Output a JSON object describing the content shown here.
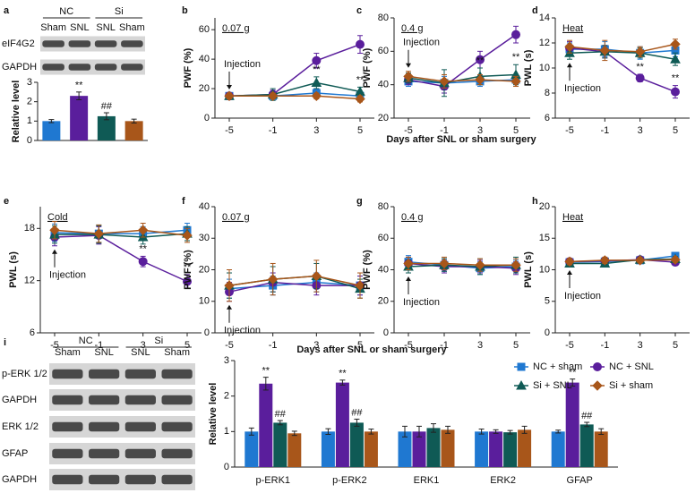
{
  "legend": [
    {
      "name": "NC + sham",
      "color": "#1f78d1",
      "marker": "square"
    },
    {
      "name": "NC + SNL",
      "color": "#5a1e9c",
      "marker": "circle"
    },
    {
      "name": "Si + SNL",
      "color": "#0f5a55",
      "marker": "triangle"
    },
    {
      "name": "Si + sham",
      "color": "#a8561a",
      "marker": "diamond"
    }
  ],
  "chart_data": [
    {
      "type": "bar",
      "panel": "a",
      "ylabel": "Relative level",
      "ylim": [
        0,
        3
      ],
      "yticks": [
        0,
        1,
        2,
        3
      ],
      "blot": {
        "groups": [
          "NC",
          "Si"
        ],
        "lanes": [
          "Sham",
          "SNL",
          "SNL",
          "Sham"
        ],
        "rows": [
          "eIF4G2",
          "GAPDH"
        ]
      },
      "values": [
        1,
        2.3,
        1.25,
        1.0
      ],
      "errors": [
        0.08,
        0.2,
        0.18,
        0.1
      ],
      "significance": [
        null,
        "**",
        "##",
        null
      ]
    },
    {
      "type": "line",
      "panel": "b",
      "ylabel": "PWF (%)",
      "condition": "0.07 g",
      "annotation": "Injection",
      "categories": [
        "-5",
        "-1",
        "3",
        "5"
      ],
      "ylim": [
        0,
        68
      ],
      "yticks": [
        0,
        20,
        40,
        60
      ],
      "series": [
        {
          "values": [
            15,
            15,
            17,
            15
          ],
          "errors": [
            2,
            2,
            3,
            3
          ],
          "significance": [
            null,
            null,
            null,
            null
          ]
        },
        {
          "values": [
            15,
            16,
            39,
            50
          ],
          "errors": [
            2,
            3,
            5,
            6
          ],
          "significance": [
            null,
            null,
            null,
            null
          ]
        },
        {
          "values": [
            15,
            16,
            24,
            18
          ],
          "errors": [
            2,
            4,
            4,
            3
          ],
          "significance": [
            null,
            null,
            "**",
            "**"
          ]
        },
        {
          "values": [
            15,
            15,
            15,
            13
          ],
          "errors": [
            2,
            2,
            2,
            2
          ],
          "significance": [
            null,
            null,
            null,
            null
          ]
        }
      ]
    },
    {
      "type": "line",
      "panel": "c",
      "ylabel": "PWF (%)",
      "condition": "0.4 g",
      "annotation": "Injection",
      "xlabel": "Days after SNL or sham surgery",
      "categories": [
        "-5",
        "-1",
        "3",
        "5"
      ],
      "ylim": [
        20,
        80
      ],
      "yticks": [
        20,
        40,
        60,
        80
      ],
      "series": [
        {
          "values": [
            42,
            41,
            42,
            43
          ],
          "errors": [
            3,
            4,
            3,
            3
          ],
          "significance": [
            null,
            null,
            null,
            null
          ]
        },
        {
          "values": [
            43,
            39,
            55,
            70
          ],
          "errors": [
            3,
            4,
            5,
            5
          ],
          "significance": [
            null,
            null,
            null,
            null
          ]
        },
        {
          "values": [
            44,
            41,
            45,
            46
          ],
          "errors": [
            3,
            8,
            5,
            6
          ],
          "significance": [
            null,
            null,
            "**",
            "**"
          ]
        },
        {
          "values": [
            45,
            42,
            43,
            42
          ],
          "errors": [
            3,
            4,
            3,
            3
          ],
          "significance": [
            null,
            null,
            null,
            null
          ]
        }
      ]
    },
    {
      "type": "line",
      "panel": "d",
      "ylabel": "PWL (s)",
      "condition": "Heat",
      "annotation": "Injection",
      "categories": [
        "-5",
        "-1",
        "3",
        "5"
      ],
      "ylim": [
        6,
        14
      ],
      "yticks": [
        6,
        8,
        10,
        12,
        14
      ],
      "series": [
        {
          "values": [
            11.5,
            11.5,
            11.2,
            11.4
          ],
          "errors": [
            0.5,
            0.6,
            0.5,
            0.5
          ],
          "significance": [
            null,
            null,
            null,
            null
          ]
        },
        {
          "values": [
            11.6,
            11.3,
            9.2,
            8.1
          ],
          "errors": [
            0.5,
            0.5,
            0.3,
            0.5
          ],
          "significance": [
            null,
            null,
            "**",
            "**"
          ]
        },
        {
          "values": [
            11.2,
            11.3,
            11.2,
            10.7
          ],
          "errors": [
            0.5,
            0.5,
            0.4,
            0.5
          ],
          "significance": [
            null,
            null,
            null,
            null
          ]
        },
        {
          "values": [
            11.7,
            11.4,
            11.3,
            11.9
          ],
          "errors": [
            0.5,
            0.8,
            0.4,
            0.4
          ],
          "significance": [
            null,
            null,
            null,
            null
          ]
        }
      ]
    },
    {
      "type": "line",
      "panel": "e",
      "ylabel": "PWL (s)",
      "condition": "Cold",
      "annotation": "Injection",
      "categories": [
        "-5",
        "-1",
        "3",
        "5"
      ],
      "ylim": [
        6,
        20.5
      ],
      "yticks": [
        6,
        12,
        18
      ],
      "series": [
        {
          "values": [
            17.5,
            17.4,
            17.4,
            17.8
          ],
          "errors": [
            1,
            1,
            0.8,
            0.8
          ],
          "significance": [
            null,
            null,
            null,
            null
          ]
        },
        {
          "values": [
            17.0,
            17.2,
            14.2,
            11.9
          ],
          "errors": [
            1,
            1,
            0.6,
            0.8
          ],
          "significance": [
            null,
            null,
            "**",
            "**"
          ]
        },
        {
          "values": [
            17.3,
            17.3,
            17.0,
            17.4
          ],
          "errors": [
            1,
            1,
            0.8,
            0.8
          ],
          "significance": [
            null,
            null,
            null,
            null
          ]
        },
        {
          "values": [
            17.8,
            17.4,
            17.8,
            17.2
          ],
          "errors": [
            1,
            1,
            0.8,
            0.8
          ],
          "significance": [
            null,
            null,
            null,
            null
          ]
        }
      ]
    },
    {
      "type": "line",
      "panel": "f",
      "ylabel": "PWF (%)",
      "condition": "0.07 g",
      "annotation": "Injection",
      "xlabel": "Days after SNL or sham surgery",
      "categories": [
        "-5",
        "-1",
        "3",
        "5"
      ],
      "ylim": [
        0,
        40
      ],
      "yticks": [
        0,
        10,
        20,
        30,
        40
      ],
      "series": [
        {
          "values": [
            14,
            15,
            16,
            15
          ],
          "errors": [
            3,
            3,
            3,
            3
          ],
          "significance": [
            null,
            null,
            null,
            null
          ]
        },
        {
          "values": [
            13,
            16,
            15,
            15
          ],
          "errors": [
            3,
            3,
            3,
            3
          ],
          "significance": [
            null,
            null,
            null,
            null
          ]
        },
        {
          "values": [
            15,
            17,
            18,
            14
          ],
          "errors": [
            4,
            4,
            4,
            3
          ],
          "significance": [
            null,
            null,
            null,
            null
          ]
        },
        {
          "values": [
            15,
            17,
            18,
            15
          ],
          "errors": [
            5,
            5,
            5,
            4
          ],
          "significance": [
            null,
            null,
            null,
            null
          ]
        }
      ]
    },
    {
      "type": "line",
      "panel": "g",
      "ylabel": "PWF (%)",
      "condition": "0.4 g",
      "annotation": "Injection",
      "categories": [
        "-5",
        "-1",
        "3",
        "5"
      ],
      "ylim": [
        0,
        80
      ],
      "yticks": [
        0,
        20,
        40,
        60,
        80
      ],
      "series": [
        {
          "values": [
            45,
            43,
            41,
            42
          ],
          "errors": [
            4,
            4,
            4,
            4
          ],
          "significance": [
            null,
            null,
            null,
            null
          ]
        },
        {
          "values": [
            44,
            42,
            42,
            41
          ],
          "errors": [
            4,
            4,
            4,
            4
          ],
          "significance": [
            null,
            null,
            null,
            null
          ]
        },
        {
          "values": [
            42,
            43,
            42,
            43
          ],
          "errors": [
            4,
            4,
            5,
            5
          ],
          "significance": [
            null,
            null,
            null,
            null
          ]
        },
        {
          "values": [
            44,
            44,
            43,
            43
          ],
          "errors": [
            4,
            4,
            4,
            4
          ],
          "significance": [
            null,
            null,
            null,
            null
          ]
        }
      ]
    },
    {
      "type": "line",
      "panel": "h",
      "ylabel": "PWL (s)",
      "condition": "Heat",
      "annotation": "Injection",
      "categories": [
        "-5",
        "-1",
        "3",
        "5"
      ],
      "ylim": [
        0,
        20
      ],
      "yticks": [
        0,
        5,
        10,
        15,
        20
      ],
      "series": [
        {
          "values": [
            11.2,
            11.3,
            11.5,
            12.2
          ],
          "errors": [
            0.5,
            0.5,
            0.4,
            0.4
          ],
          "significance": [
            null,
            null,
            null,
            null
          ]
        },
        {
          "values": [
            11.3,
            11.4,
            11.6,
            11.2
          ],
          "errors": [
            0.5,
            0.5,
            0.4,
            0.4
          ],
          "significance": [
            null,
            null,
            null,
            null
          ]
        },
        {
          "values": [
            11.0,
            11.0,
            11.6,
            11.7
          ],
          "errors": [
            0.5,
            0.5,
            0.4,
            0.4
          ],
          "significance": [
            null,
            null,
            null,
            null
          ]
        },
        {
          "values": [
            11.3,
            11.5,
            11.5,
            11.6
          ],
          "errors": [
            0.5,
            0.5,
            0.4,
            0.4
          ],
          "significance": [
            null,
            null,
            null,
            null
          ]
        }
      ]
    },
    {
      "type": "bar",
      "panel": "i",
      "ylabel": "Relative level",
      "ylim": [
        0,
        3
      ],
      "yticks": [
        0,
        1,
        2,
        3
      ],
      "blot": {
        "groups": [
          "NC",
          "Si"
        ],
        "lanes": [
          "Sham",
          "SNL",
          "SNL",
          "Sham"
        ],
        "rows": [
          "p-ERK 1/2",
          "GAPDH",
          "ERK 1/2",
          "GFAP",
          "GAPDH"
        ]
      },
      "categories": [
        "p-ERK1",
        "p-ERK2",
        "ERK1",
        "ERK2",
        "GFAP"
      ],
      "series": [
        {
          "values": [
            1,
            1,
            1,
            1,
            1
          ],
          "errors": [
            0.1,
            0.08,
            0.15,
            0.07,
            0.04
          ],
          "significance": [
            null,
            null,
            null,
            null,
            null
          ]
        },
        {
          "values": [
            2.35,
            2.38,
            1.0,
            1.0,
            2.38
          ],
          "errors": [
            0.18,
            0.07,
            0.15,
            0.05,
            0.1
          ],
          "significance": [
            "**",
            "**",
            null,
            null,
            "**"
          ]
        },
        {
          "values": [
            1.25,
            1.25,
            1.1,
            0.98,
            1.2
          ],
          "errors": [
            0.06,
            0.1,
            0.12,
            0.05,
            0.06
          ],
          "significance": [
            "##",
            "##",
            null,
            null,
            "##"
          ]
        },
        {
          "values": [
            0.95,
            1.0,
            1.05,
            1.05,
            1.0
          ],
          "errors": [
            0.06,
            0.07,
            0.1,
            0.1,
            0.08
          ],
          "significance": [
            null,
            null,
            null,
            null,
            null
          ]
        }
      ]
    }
  ]
}
